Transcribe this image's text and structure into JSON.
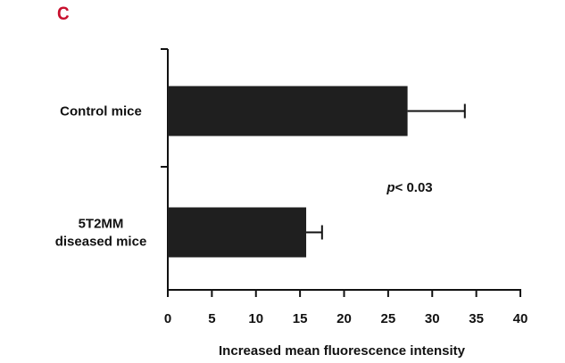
{
  "panel_label": "C",
  "chart_data": {
    "type": "bar",
    "orientation": "horizontal",
    "categories": [
      [
        "Control mice"
      ],
      [
        "5T2MM",
        "diseased mice"
      ]
    ],
    "values": [
      27.2,
      15.7
    ],
    "errors": [
      6.5,
      1.8
    ],
    "xlabel": "Increased mean fluorescence intensity",
    "ylabel": "",
    "xlim": [
      0,
      40
    ],
    "xticks": [
      "0",
      "5",
      "10",
      "15",
      "20",
      "25",
      "30",
      "35",
      "40"
    ],
    "annotation": {
      "italic": "p",
      "rest": "< 0.03"
    },
    "bar_color": "#1f1f1f",
    "grid": false
  }
}
